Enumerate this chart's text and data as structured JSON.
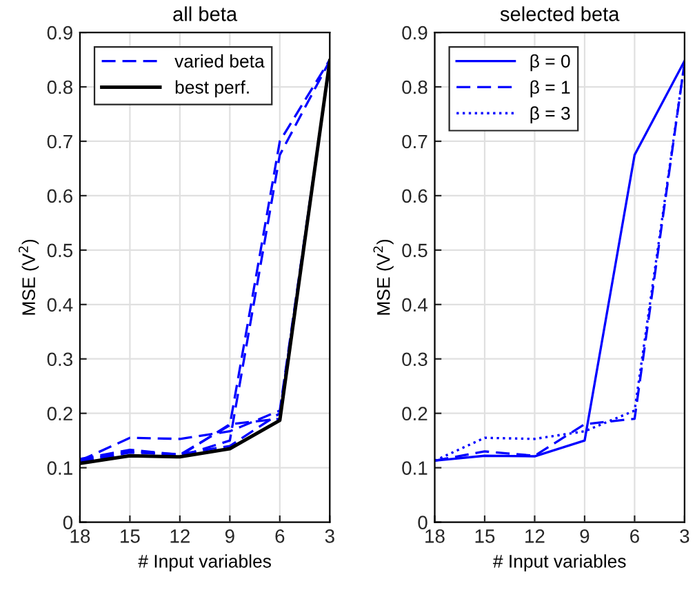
{
  "chart_data": [
    {
      "type": "line",
      "title": "all beta",
      "xlabel": "# Input variables",
      "ylabel": "MSE (V$^{2}$)",
      "x": [
        18,
        15,
        12,
        9,
        6,
        3
      ],
      "xlim": [
        18,
        3
      ],
      "xticks": [
        18,
        15,
        12,
        9,
        6,
        3
      ],
      "ylim": [
        0,
        0.9
      ],
      "yticks": [
        0,
        0.1,
        0.2,
        0.3,
        0.4,
        0.5,
        0.6,
        0.7,
        0.8,
        0.9
      ],
      "grid": true,
      "legend": "top left",
      "series": [
        {
          "name": "varied beta",
          "color": "#0000ff",
          "line_style": "dashed",
          "values": [
            0.113,
            0.122,
            0.121,
            0.15,
            0.675,
            0.848
          ]
        },
        {
          "color": "#0000ff",
          "line_style": "dashed",
          "values": [
            0.113,
            0.13,
            0.122,
            0.18,
            0.19,
            0.845
          ]
        },
        {
          "color": "#0000ff",
          "line_style": "dashed",
          "values": [
            0.113,
            0.155,
            0.153,
            0.167,
            0.205,
            0.845
          ]
        },
        {
          "color": "#0000ff",
          "line_style": "dashed",
          "values": [
            0.116,
            0.133,
            0.124,
            0.178,
            0.7,
            0.85
          ]
        },
        {
          "color": "#0000ff",
          "line_style": "dashed",
          "values": [
            0.112,
            0.128,
            0.125,
            0.14,
            0.2,
            0.845
          ]
        },
        {
          "name": "best perf.",
          "color": "#000000",
          "line_style": "solid",
          "values": [
            0.108,
            0.122,
            0.12,
            0.135,
            0.187,
            0.848
          ]
        }
      ]
    },
    {
      "type": "line",
      "title": "selected beta",
      "xlabel": "# Input variables",
      "ylabel": "MSE (V$^{2}$)",
      "x": [
        18,
        15,
        12,
        9,
        6,
        3
      ],
      "xlim": [
        18,
        3
      ],
      "xticks": [
        18,
        15,
        12,
        9,
        6,
        3
      ],
      "ylim": [
        0,
        0.9
      ],
      "yticks": [
        0,
        0.1,
        0.2,
        0.3,
        0.4,
        0.5,
        0.6,
        0.7,
        0.8,
        0.9
      ],
      "grid": true,
      "legend": "top left",
      "series": [
        {
          "name": "β = 0",
          "color": "#0000ff",
          "line_style": "solid",
          "values": [
            0.113,
            0.122,
            0.121,
            0.15,
            0.675,
            0.848
          ]
        },
        {
          "name": "β = 1",
          "color": "#0000ff",
          "line_style": "dashed",
          "values": [
            0.113,
            0.13,
            0.122,
            0.18,
            0.19,
            0.845
          ]
        },
        {
          "name": "β = 3",
          "color": "#0000ff",
          "line_style": "dotted",
          "values": [
            0.113,
            0.155,
            0.153,
            0.167,
            0.205,
            0.845
          ]
        }
      ]
    }
  ]
}
